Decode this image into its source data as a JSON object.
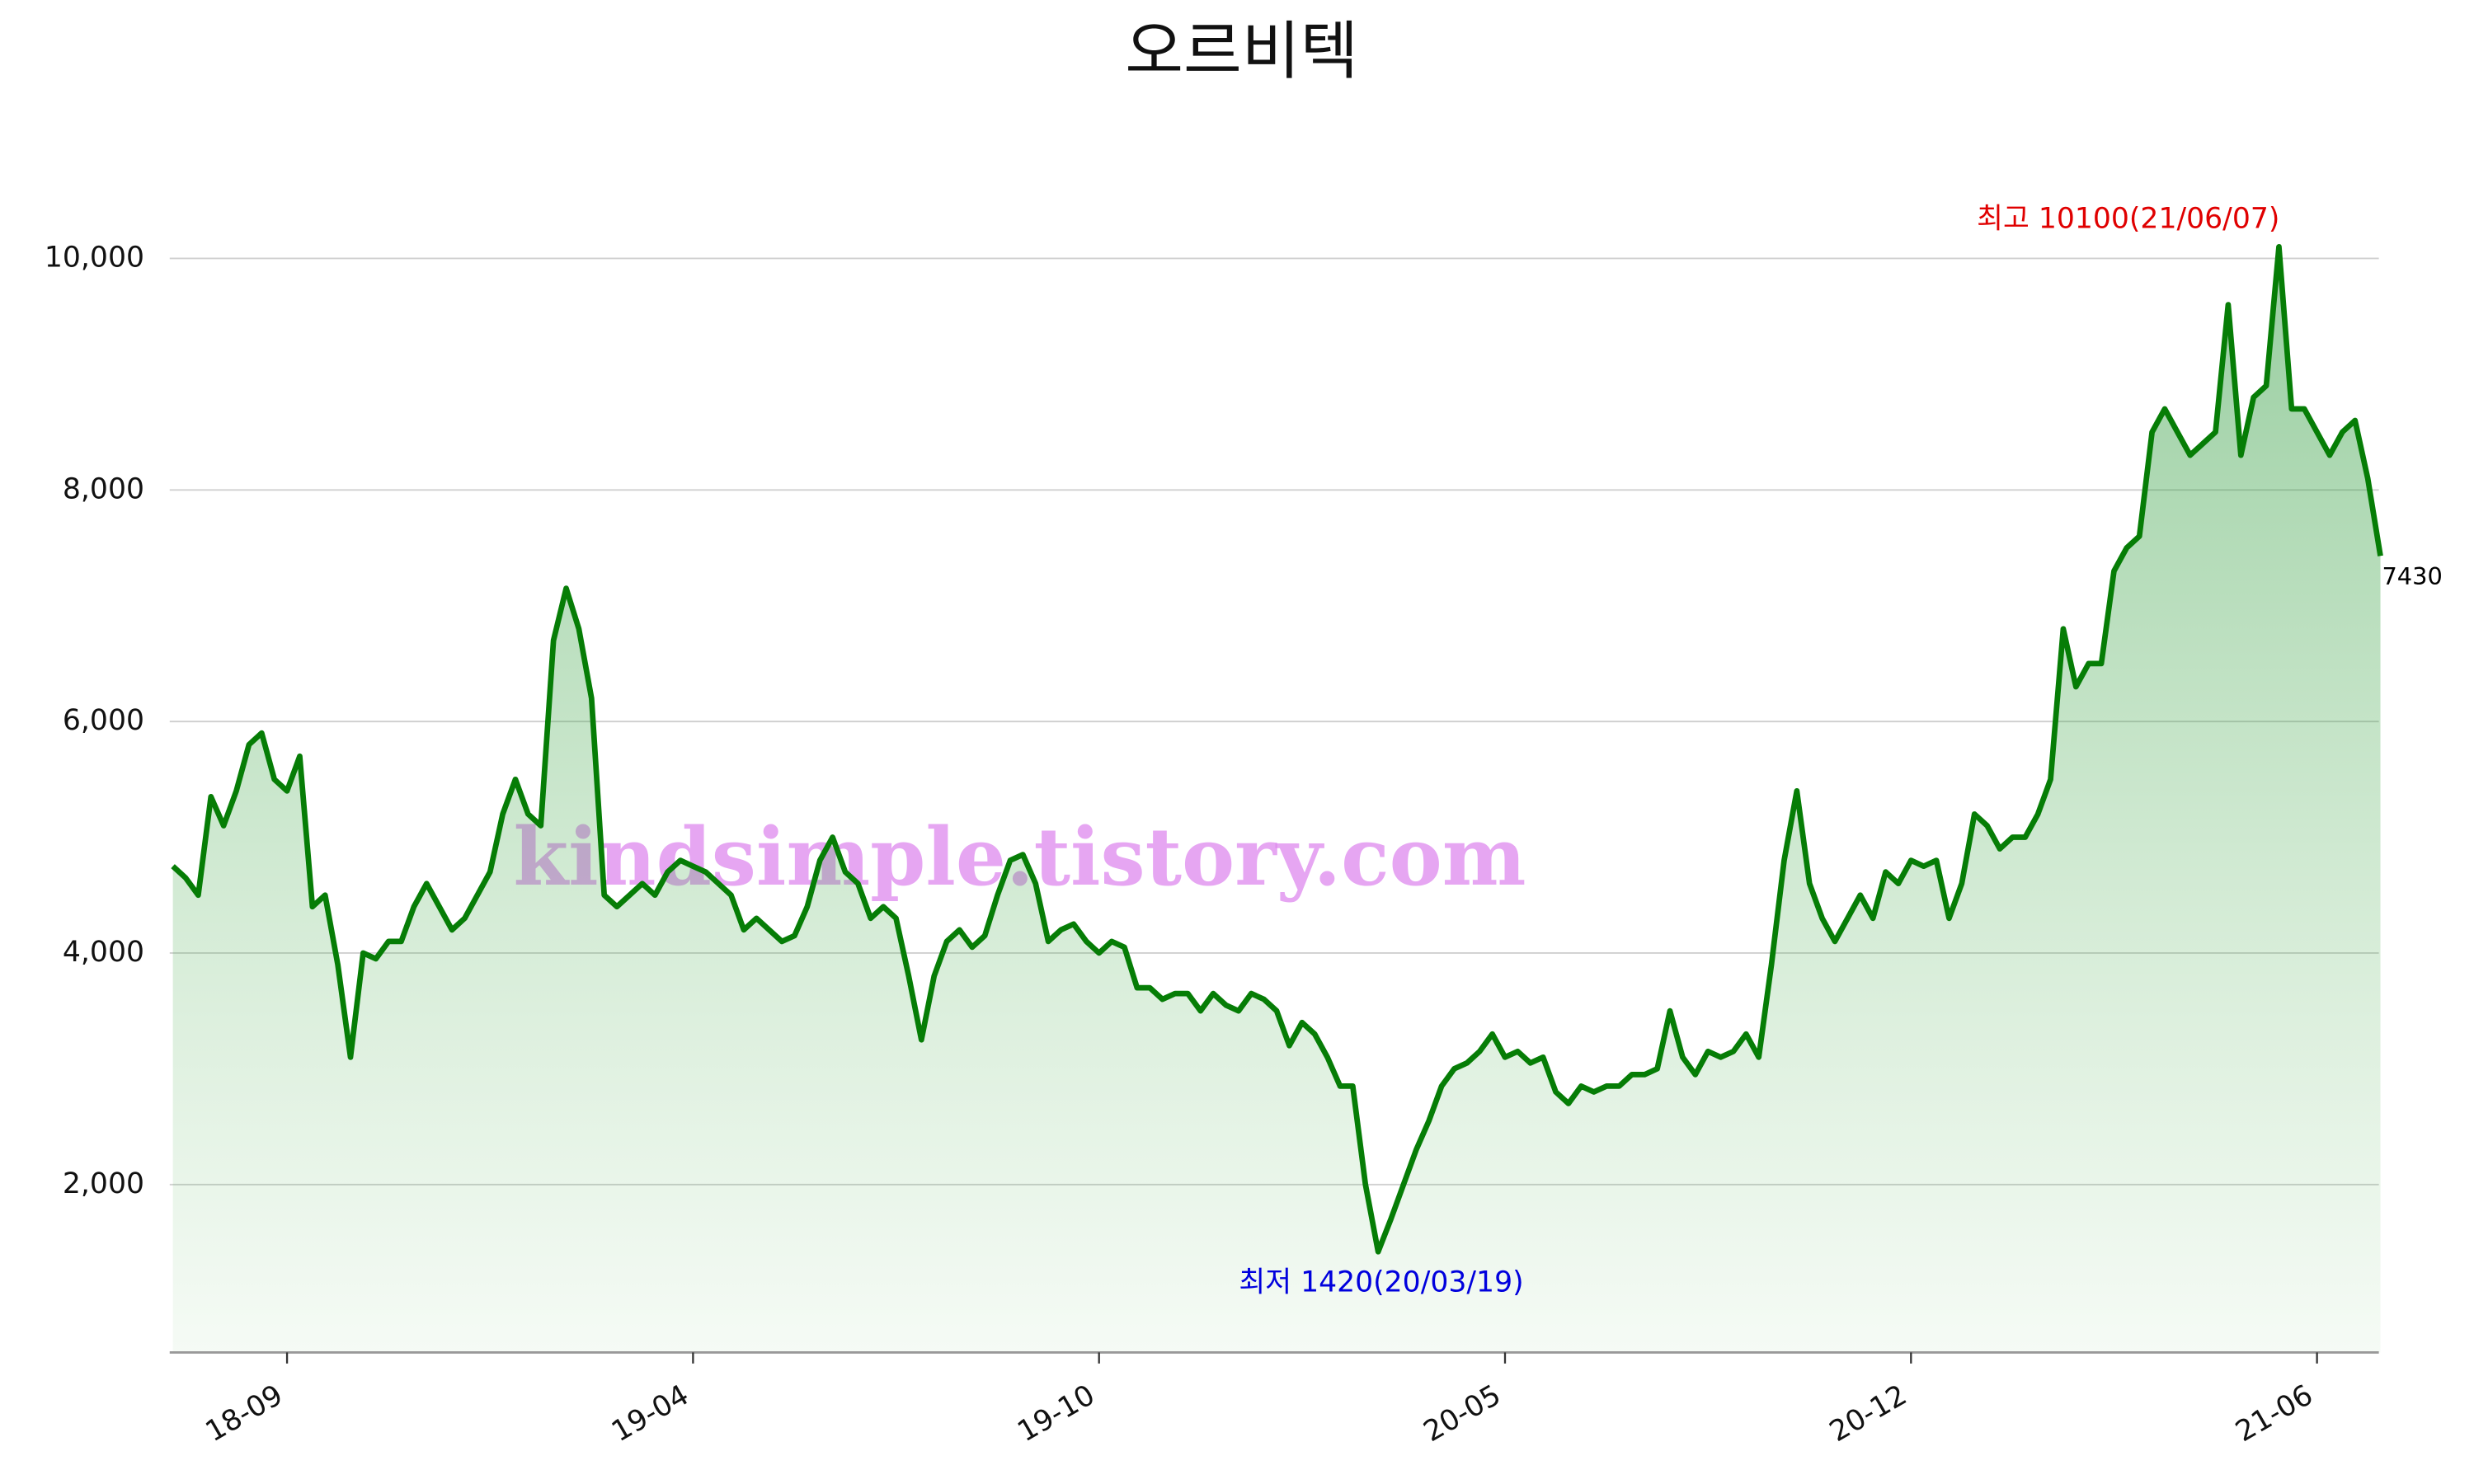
{
  "chart_data": {
    "type": "line",
    "title": "오르비텍",
    "watermark": "kindsimple.tistory.com",
    "categories": [
      null,
      null,
      null,
      null,
      null,
      null,
      null,
      null,
      null,
      "18-09",
      null,
      null,
      null,
      null,
      null,
      null,
      null,
      null,
      null,
      null,
      null,
      null,
      null,
      null,
      null,
      null,
      null,
      null,
      null,
      null,
      null,
      null,
      null,
      null,
      null,
      null,
      null,
      null,
      null,
      null,
      null,
      "19-04",
      null,
      null,
      null,
      null,
      null,
      null,
      null,
      null,
      null,
      null,
      null,
      null,
      null,
      null,
      null,
      null,
      null,
      null,
      null,
      null,
      null,
      null,
      null,
      null,
      null,
      null,
      null,
      null,
      null,
      null,
      null,
      "19-10",
      null,
      null,
      null,
      null,
      null,
      null,
      null,
      null,
      null,
      null,
      null,
      null,
      null,
      null,
      null,
      null,
      null,
      null,
      null,
      null,
      null,
      null,
      null,
      null,
      null,
      null,
      null,
      null,
      null,
      null,
      null,
      "20-05",
      null,
      null,
      null,
      null,
      null,
      null,
      null,
      null,
      null,
      null,
      null,
      null,
      null,
      null,
      null,
      null,
      null,
      null,
      null,
      null,
      null,
      null,
      null,
      null,
      null,
      null,
      null,
      null,
      null,
      null,
      null,
      "20-12",
      null,
      null,
      null,
      null,
      null,
      null,
      null,
      null,
      null,
      null,
      null,
      null,
      null,
      null,
      null,
      null,
      null,
      null,
      null,
      null,
      null,
      null,
      null,
      null,
      null,
      null,
      null,
      null,
      null,
      null,
      null,
      "21-06",
      null,
      null,
      null,
      null,
      null
    ],
    "series": [
      {
        "color": "#067d06",
        "values": [
          4750,
          4650,
          4500,
          5350,
          5100,
          5400,
          5800,
          5900,
          5500,
          5400,
          5700,
          4400,
          4500,
          3900,
          3100,
          4000,
          3950,
          4100,
          4100,
          4400,
          4600,
          4400,
          4200,
          4300,
          4500,
          4700,
          5200,
          5500,
          5200,
          5100,
          6700,
          7150,
          6800,
          6200,
          4500,
          4400,
          4500,
          4600,
          4500,
          4700,
          4800,
          4750,
          4700,
          4600,
          4500,
          4200,
          4300,
          4200,
          4100,
          4150,
          4400,
          4800,
          5000,
          4700,
          4600,
          4300,
          4400,
          4300,
          3800,
          3250,
          3800,
          4100,
          4200,
          4050,
          4150,
          4500,
          4800,
          4850,
          4600,
          4100,
          4200,
          4250,
          4100,
          4000,
          4100,
          4050,
          3700,
          3700,
          3600,
          3650,
          3650,
          3500,
          3650,
          3550,
          3500,
          3650,
          3600,
          3500,
          3200,
          3400,
          3300,
          3100,
          2850,
          2850,
          2000,
          1420,
          1700,
          2000,
          2300,
          2550,
          2850,
          3000,
          3050,
          3150,
          3300,
          3100,
          3150,
          3050,
          3100,
          2800,
          2700,
          2850,
          2800,
          2850,
          2850,
          2950,
          2950,
          3000,
          3500,
          3100,
          2950,
          3150,
          3100,
          3150,
          3300,
          3100,
          3900,
          4800,
          5400,
          4600,
          4300,
          4100,
          4300,
          4500,
          4300,
          4700,
          4600,
          4800,
          4750,
          4800,
          4300,
          4600,
          5200,
          5100,
          4900,
          5000,
          5000,
          5200,
          5500,
          6800,
          6300,
          6500,
          6500,
          7300,
          7500,
          7600,
          8500,
          8700,
          8500,
          8300,
          8400,
          8500,
          9600,
          8300,
          8800,
          8900,
          10100,
          8700,
          8700,
          8500,
          8300,
          8500,
          8600,
          8100,
          7430
        ]
      }
    ],
    "ylim": [
      550,
      10860
    ],
    "yticks": [
      {
        "value": 2000,
        "label": "2,000"
      },
      {
        "value": 4000,
        "label": "4,000"
      },
      {
        "value": 6000,
        "label": "6,000"
      },
      {
        "value": 8000,
        "label": "8,000"
      },
      {
        "value": 10000,
        "label": "10,000"
      }
    ],
    "grid": true,
    "annotations": {
      "max": {
        "text": "최고 10100(21/06/07)",
        "color": "#e00000"
      },
      "min": {
        "text": "최저 1420(20/03/19)",
        "color": "#0000dd"
      },
      "last": {
        "text": "7430",
        "color": "#000000"
      }
    }
  }
}
